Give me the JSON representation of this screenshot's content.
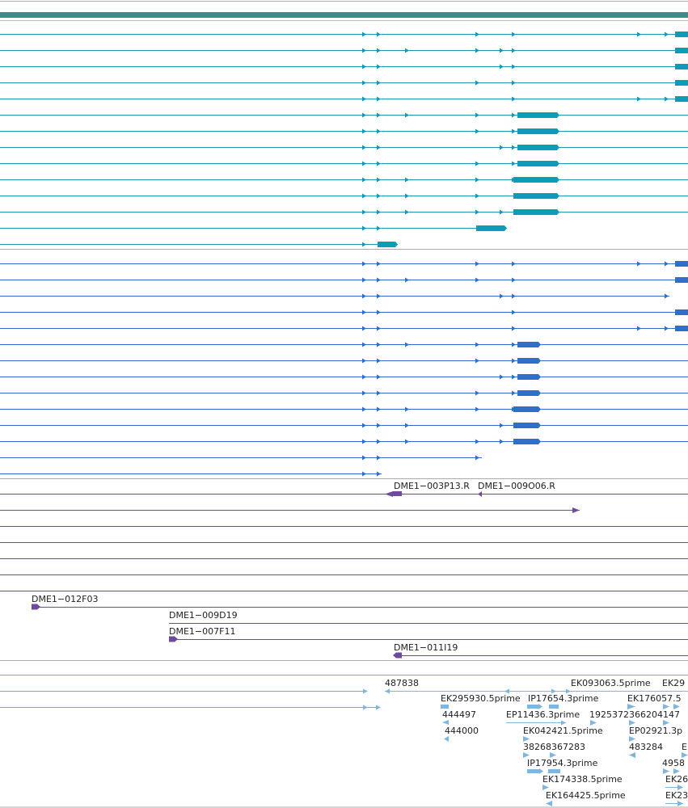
{
  "colors": {
    "track1_line": "#1699b0",
    "track1_exon": "#0e9bb5",
    "track2": "#2f6fcc",
    "track3": "#6d4a9c",
    "track4_line": "#5fb2d6",
    "track4_feature": "#7fb6dd",
    "frame": "#aaaaaa",
    "header_bar": "#3e8c8a"
  },
  "track1": {
    "name": "gene-models-teal",
    "rows": [
      {
        "arrows": [
          451,
          469,
          591,
          636,
          791,
          825
        ],
        "exon": [
          835,
          851
        ]
      },
      {
        "arrows": [
          451,
          469,
          504,
          591,
          621,
          636
        ],
        "exon": [
          835,
          851
        ]
      },
      {
        "arrows": [
          451,
          469,
          621,
          636
        ],
        "exon": [
          835,
          851
        ]
      },
      {
        "arrows": [
          451,
          469,
          591,
          636
        ],
        "exon": [
          835,
          851
        ]
      },
      {
        "arrows": [
          451,
          469,
          636,
          791,
          825
        ],
        "exon": [
          835,
          851
        ]
      },
      {
        "arrows": [
          451,
          469,
          504,
          591,
          636
        ],
        "exon": [
          640,
          692
        ]
      },
      {
        "arrows": [
          451,
          469,
          591,
          636
        ],
        "exon": [
          640,
          692
        ]
      },
      {
        "arrows": [
          451,
          469,
          621,
          636
        ],
        "exon": [
          640,
          692
        ]
      },
      {
        "arrows": [
          451,
          469,
          591,
          636
        ],
        "exon": [
          640,
          692
        ]
      },
      {
        "arrows": [
          451,
          469,
          504,
          591,
          636
        ],
        "exon": [
          635,
          692
        ]
      },
      {
        "arrows": [
          451,
          469,
          504,
          591
        ],
        "exon": [
          635,
          692
        ]
      },
      {
        "arrows": [
          451,
          469,
          504,
          591,
          621
        ],
        "exon": [
          635,
          692
        ]
      },
      {
        "arrows": [
          451,
          469
        ],
        "exon": [
          589,
          627
        ],
        "end": 627
      },
      {
        "arrows": [
          451
        ],
        "exon": [
          467,
          492
        ],
        "end": 492
      }
    ]
  },
  "track2": {
    "name": "gene-models-blue",
    "rows": [
      {
        "arrows": [
          451,
          469,
          591,
          636,
          791,
          825
        ],
        "exon": [
          835,
          851
        ]
      },
      {
        "arrows": [
          451,
          469,
          504,
          591,
          636
        ],
        "exon": [
          835,
          851
        ]
      },
      {
        "arrows": [
          451,
          469,
          621,
          636,
          825
        ],
        "exon": null,
        "end": 828
      },
      {
        "arrows": [
          451,
          469,
          636
        ],
        "exon": [
          835,
          851
        ]
      },
      {
        "arrows": [
          451,
          469,
          636,
          791,
          825
        ],
        "exon": [
          835,
          851
        ]
      },
      {
        "arrows": [
          451,
          469,
          504,
          591,
          636
        ],
        "exon": [
          640,
          669
        ]
      },
      {
        "arrows": [
          451,
          469,
          591,
          636
        ],
        "exon": [
          640,
          669
        ]
      },
      {
        "arrows": [
          451,
          469,
          621,
          636
        ],
        "exon": [
          640,
          669
        ]
      },
      {
        "arrows": [
          451,
          469,
          591,
          636
        ],
        "exon": [
          640,
          669
        ]
      },
      {
        "arrows": [
          451,
          469,
          504,
          591,
          636
        ],
        "exon": [
          635,
          669
        ]
      },
      {
        "arrows": [
          451,
          469,
          504,
          621
        ],
        "exon": [
          635,
          669
        ]
      },
      {
        "arrows": [
          451,
          469,
          504,
          591,
          621
        ],
        "exon": [
          635,
          669
        ]
      },
      {
        "arrows": [
          451,
          469,
          591
        ],
        "exon": null,
        "end": 596
      },
      {
        "arrows": [
          451,
          469
        ],
        "exon": null,
        "end": 472
      }
    ]
  },
  "track3": {
    "name": "cdna-clones",
    "labels": {
      "a": "DME1−003P13.R",
      "b": "DME1−009O06.R",
      "c": "DME1−012F03",
      "d": "DME1−009D19",
      "e": "DME1−007F11",
      "f": "DME1−011I19"
    }
  },
  "track4": {
    "name": "est-alignments",
    "labels": [
      "487838",
      "EK093063.5prime",
      "EK29",
      "EK295930.5prime",
      "IP17654.3prime",
      "EK176057.5",
      "444497",
      "EP11436.3prime",
      "1925372366204147",
      "444000",
      "EK042421.5prime",
      "EP02921.3p",
      "38268367283",
      "483284",
      "E",
      "IP17954.3prime",
      "4958",
      "EK174338.5prime",
      "EK26",
      "EK164425.5prime",
      "EK23"
    ]
  }
}
